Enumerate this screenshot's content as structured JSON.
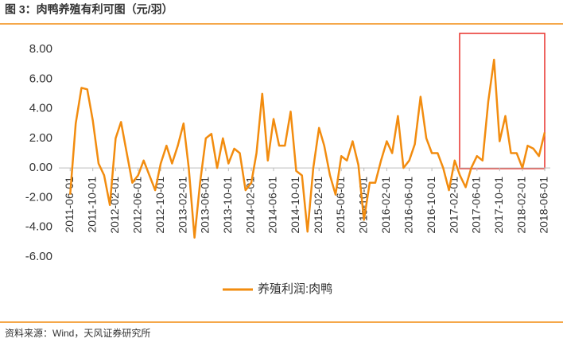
{
  "chart_data": {
    "type": "line",
    "title": "图 3：肉鸭养殖有利可图（元/羽）",
    "source": "资料来源：Wind，天风证券研究所",
    "x": [
      "2011-06-01",
      "2011-07-01",
      "2011-08-01",
      "2011-09-01",
      "2011-10-01",
      "2011-11-01",
      "2011-12-01",
      "2012-01-01",
      "2012-02-01",
      "2012-03-01",
      "2012-04-01",
      "2012-05-01",
      "2012-06-01",
      "2012-07-01",
      "2012-08-01",
      "2012-09-01",
      "2012-10-01",
      "2012-11-01",
      "2012-12-01",
      "2013-01-01",
      "2013-02-01",
      "2013-03-01",
      "2013-04-01",
      "2013-05-01",
      "2013-06-01",
      "2013-07-01",
      "2013-08-01",
      "2013-09-01",
      "2013-10-01",
      "2013-11-01",
      "2013-12-01",
      "2014-01-01",
      "2014-02-01",
      "2014-03-01",
      "2014-04-01",
      "2014-05-01",
      "2014-06-01",
      "2014-07-01",
      "2014-08-01",
      "2014-09-01",
      "2014-10-01",
      "2014-11-01",
      "2014-12-01",
      "2015-01-01",
      "2015-02-01",
      "2015-03-01",
      "2015-04-01",
      "2015-05-01",
      "2015-06-01",
      "2015-07-01",
      "2015-08-01",
      "2015-09-01",
      "2015-10-01",
      "2015-11-01",
      "2015-12-01",
      "2016-01-01",
      "2016-02-01",
      "2016-03-01",
      "2016-04-01",
      "2016-05-01",
      "2016-06-01",
      "2016-07-01",
      "2016-08-01",
      "2016-09-01",
      "2016-10-01",
      "2016-11-01",
      "2016-12-01",
      "2017-01-01",
      "2017-02-01",
      "2017-03-01",
      "2017-04-01",
      "2017-05-01",
      "2017-06-01",
      "2017-07-01",
      "2017-08-01",
      "2017-09-01",
      "2017-10-01",
      "2017-11-01",
      "2017-12-01",
      "2018-01-01",
      "2018-02-01",
      "2018-03-01",
      "2018-04-01",
      "2018-05-01",
      "2018-06-01"
    ],
    "series": [
      {
        "name": "养殖利润:肉鸭",
        "color": "#f28c0f",
        "values": [
          -1.8,
          3,
          5.4,
          5.3,
          3.2,
          0.3,
          -0.5,
          -2.5,
          2.0,
          3.1,
          1.0,
          -1.0,
          -0.5,
          0.5,
          -0.5,
          -1.5,
          0.3,
          1.5,
          0.3,
          1.5,
          3.0,
          0.0,
          -4.7,
          -1.0,
          2.0,
          2.3,
          0,
          2.0,
          0.3,
          1.3,
          1.0,
          -1.5,
          -1.0,
          1.0,
          5.0,
          0.5,
          3.3,
          1.5,
          1.5,
          3.8,
          -0.2,
          -0.5,
          -4.3,
          0.0,
          2.7,
          1.5,
          -0.5,
          -1.8,
          0.8,
          0.5,
          1.8,
          0.2,
          -3.5,
          -1.0,
          -1.0,
          0.5,
          1.8,
          1.0,
          3.5,
          0.0,
          0.5,
          1.6,
          4.8,
          2.0,
          1.0,
          1.0,
          0.0,
          -1.5,
          0.5,
          -0.5,
          -1.3,
          0.0,
          0.8,
          0.5,
          4.5,
          7.3,
          1.8,
          3.5,
          1.0,
          1.0,
          0.0,
          1.5,
          1.3,
          0.8,
          2.4
        ]
      }
    ],
    "xlim": [
      "2011-04-01",
      "2018-07-01"
    ],
    "xticks": [
      "2011-06-01",
      "2011-10-01",
      "2012-02-01",
      "2012-06-01",
      "2012-10-01",
      "2013-02-01",
      "2013-06-01",
      "2013-10-01",
      "2014-02-01",
      "2014-06-01",
      "2014-10-01",
      "2015-02-01",
      "2015-06-01",
      "2015-10-01",
      "2016-02-01",
      "2016-06-01",
      "2016-10-01",
      "2017-02-01",
      "2017-06-01",
      "2017-10-01",
      "2018-02-01",
      "2018-06-01"
    ],
    "ylim": [
      -6,
      8
    ],
    "yticks": [
      {
        "value": 8,
        "label": "8.00"
      },
      {
        "value": 6,
        "label": "6.00"
      },
      {
        "value": 4,
        "label": "4.00"
      },
      {
        "value": 2,
        "label": "2.00"
      },
      {
        "value": 0,
        "label": "0.00"
      },
      {
        "value": -2,
        "label": "-2.00"
      },
      {
        "value": -4,
        "label": "-4.00"
      },
      {
        "value": -6,
        "label": "-6.00"
      }
    ],
    "grid": false
  }
}
